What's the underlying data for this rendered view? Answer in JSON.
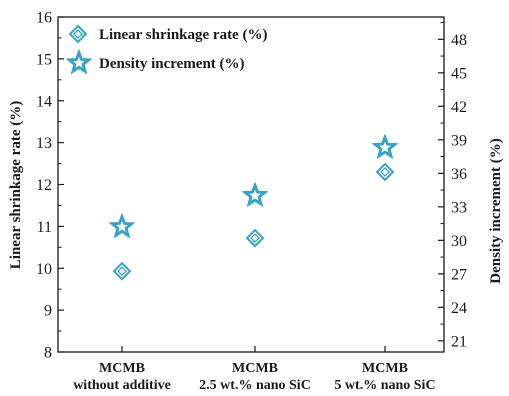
{
  "chart_data": {
    "type": "scatter",
    "categories": [
      [
        "MCMB",
        "without additive"
      ],
      [
        "MCMB",
        "2.5 wt.% nano SiC"
      ],
      [
        "MCMB",
        "5 wt.% nano SiC"
      ]
    ],
    "ylabel": "Linear shrinkage rate (%)",
    "y2label": "Density increment (%)",
    "ylim": [
      8,
      16
    ],
    "yticks": [
      "8",
      "9",
      "10",
      "11",
      "12",
      "13",
      "14",
      "15",
      "16"
    ],
    "y2lim": [
      20,
      50
    ],
    "y2ticks": [
      "21",
      "24",
      "27",
      "30",
      "33",
      "36",
      "39",
      "42",
      "45",
      "48"
    ],
    "legend_position": "top-left",
    "series": [
      {
        "name": "Linear shrinkage rate (%)",
        "axis": "left",
        "marker": "diamond",
        "values": [
          9.93,
          10.72,
          12.3
        ]
      },
      {
        "name": "Density increment (%)",
        "axis": "right",
        "marker": "star",
        "values": [
          31.2,
          34.0,
          38.3
        ]
      }
    ],
    "marker_color": "#3aa3c4"
  }
}
